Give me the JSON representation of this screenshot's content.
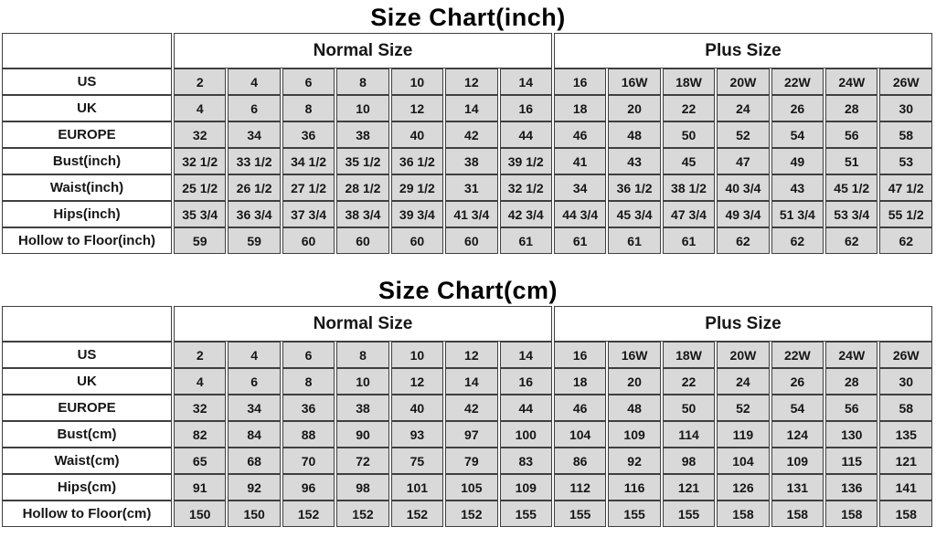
{
  "colors": {
    "cell_background": "#d9d9d9",
    "border": "#3f3f3f",
    "text": "#161616",
    "page_background": "#ffffff"
  },
  "chart_data": [
    {
      "type": "table",
      "title": "Size Chart(inch)",
      "column_groups": [
        {
          "label": "",
          "span": 1
        },
        {
          "label": "Normal Size",
          "span": 7
        },
        {
          "label": "Plus Size",
          "span": 7
        }
      ],
      "rows": [
        {
          "label": "US",
          "values": [
            "2",
            "4",
            "6",
            "8",
            "10",
            "12",
            "14",
            "16",
            "16W",
            "18W",
            "20W",
            "22W",
            "24W",
            "26W"
          ]
        },
        {
          "label": "UK",
          "values": [
            "4",
            "6",
            "8",
            "10",
            "12",
            "14",
            "16",
            "18",
            "20",
            "22",
            "24",
            "26",
            "28",
            "30"
          ]
        },
        {
          "label": "EUROPE",
          "values": [
            "32",
            "34",
            "36",
            "38",
            "40",
            "42",
            "44",
            "46",
            "48",
            "50",
            "52",
            "54",
            "56",
            "58"
          ]
        },
        {
          "label": "Bust(inch)",
          "values": [
            "32 1/2",
            "33 1/2",
            "34 1/2",
            "35 1/2",
            "36 1/2",
            "38",
            "39 1/2",
            "41",
            "43",
            "45",
            "47",
            "49",
            "51",
            "53"
          ]
        },
        {
          "label": "Waist(inch)",
          "values": [
            "25 1/2",
            "26 1/2",
            "27 1/2",
            "28 1/2",
            "29 1/2",
            "31",
            "32 1/2",
            "34",
            "36 1/2",
            "38 1/2",
            "40 3/4",
            "43",
            "45 1/2",
            "47 1/2"
          ]
        },
        {
          "label": "Hips(inch)",
          "values": [
            "35 3/4",
            "36 3/4",
            "37 3/4",
            "38 3/4",
            "39 3/4",
            "41 3/4",
            "42 3/4",
            "44 3/4",
            "45 3/4",
            "47 3/4",
            "49 3/4",
            "51 3/4",
            "53 3/4",
            "55 1/2"
          ]
        },
        {
          "label": "Hollow to Floor(inch)",
          "values": [
            "59",
            "59",
            "60",
            "60",
            "60",
            "60",
            "61",
            "61",
            "61",
            "61",
            "62",
            "62",
            "62",
            "62"
          ]
        }
      ]
    },
    {
      "type": "table",
      "title": "Size Chart(cm)",
      "column_groups": [
        {
          "label": "",
          "span": 1
        },
        {
          "label": "Normal Size",
          "span": 7
        },
        {
          "label": "Plus Size",
          "span": 7
        }
      ],
      "rows": [
        {
          "label": "US",
          "values": [
            "2",
            "4",
            "6",
            "8",
            "10",
            "12",
            "14",
            "16",
            "16W",
            "18W",
            "20W",
            "22W",
            "24W",
            "26W"
          ]
        },
        {
          "label": "UK",
          "values": [
            "4",
            "6",
            "8",
            "10",
            "12",
            "14",
            "16",
            "18",
            "20",
            "22",
            "24",
            "26",
            "28",
            "30"
          ]
        },
        {
          "label": "EUROPE",
          "values": [
            "32",
            "34",
            "36",
            "38",
            "40",
            "42",
            "44",
            "46",
            "48",
            "50",
            "52",
            "54",
            "56",
            "58"
          ]
        },
        {
          "label": "Bust(cm)",
          "values": [
            "82",
            "84",
            "88",
            "90",
            "93",
            "97",
            "100",
            "104",
            "109",
            "114",
            "119",
            "124",
            "130",
            "135"
          ]
        },
        {
          "label": "Waist(cm)",
          "values": [
            "65",
            "68",
            "70",
            "72",
            "75",
            "79",
            "83",
            "86",
            "92",
            "98",
            "104",
            "109",
            "115",
            "121"
          ]
        },
        {
          "label": "Hips(cm)",
          "values": [
            "91",
            "92",
            "96",
            "98",
            "101",
            "105",
            "109",
            "112",
            "116",
            "121",
            "126",
            "131",
            "136",
            "141"
          ]
        },
        {
          "label": "Hollow to Floor(cm)",
          "values": [
            "150",
            "150",
            "152",
            "152",
            "152",
            "152",
            "155",
            "155",
            "155",
            "155",
            "158",
            "158",
            "158",
            "158"
          ]
        }
      ]
    }
  ]
}
